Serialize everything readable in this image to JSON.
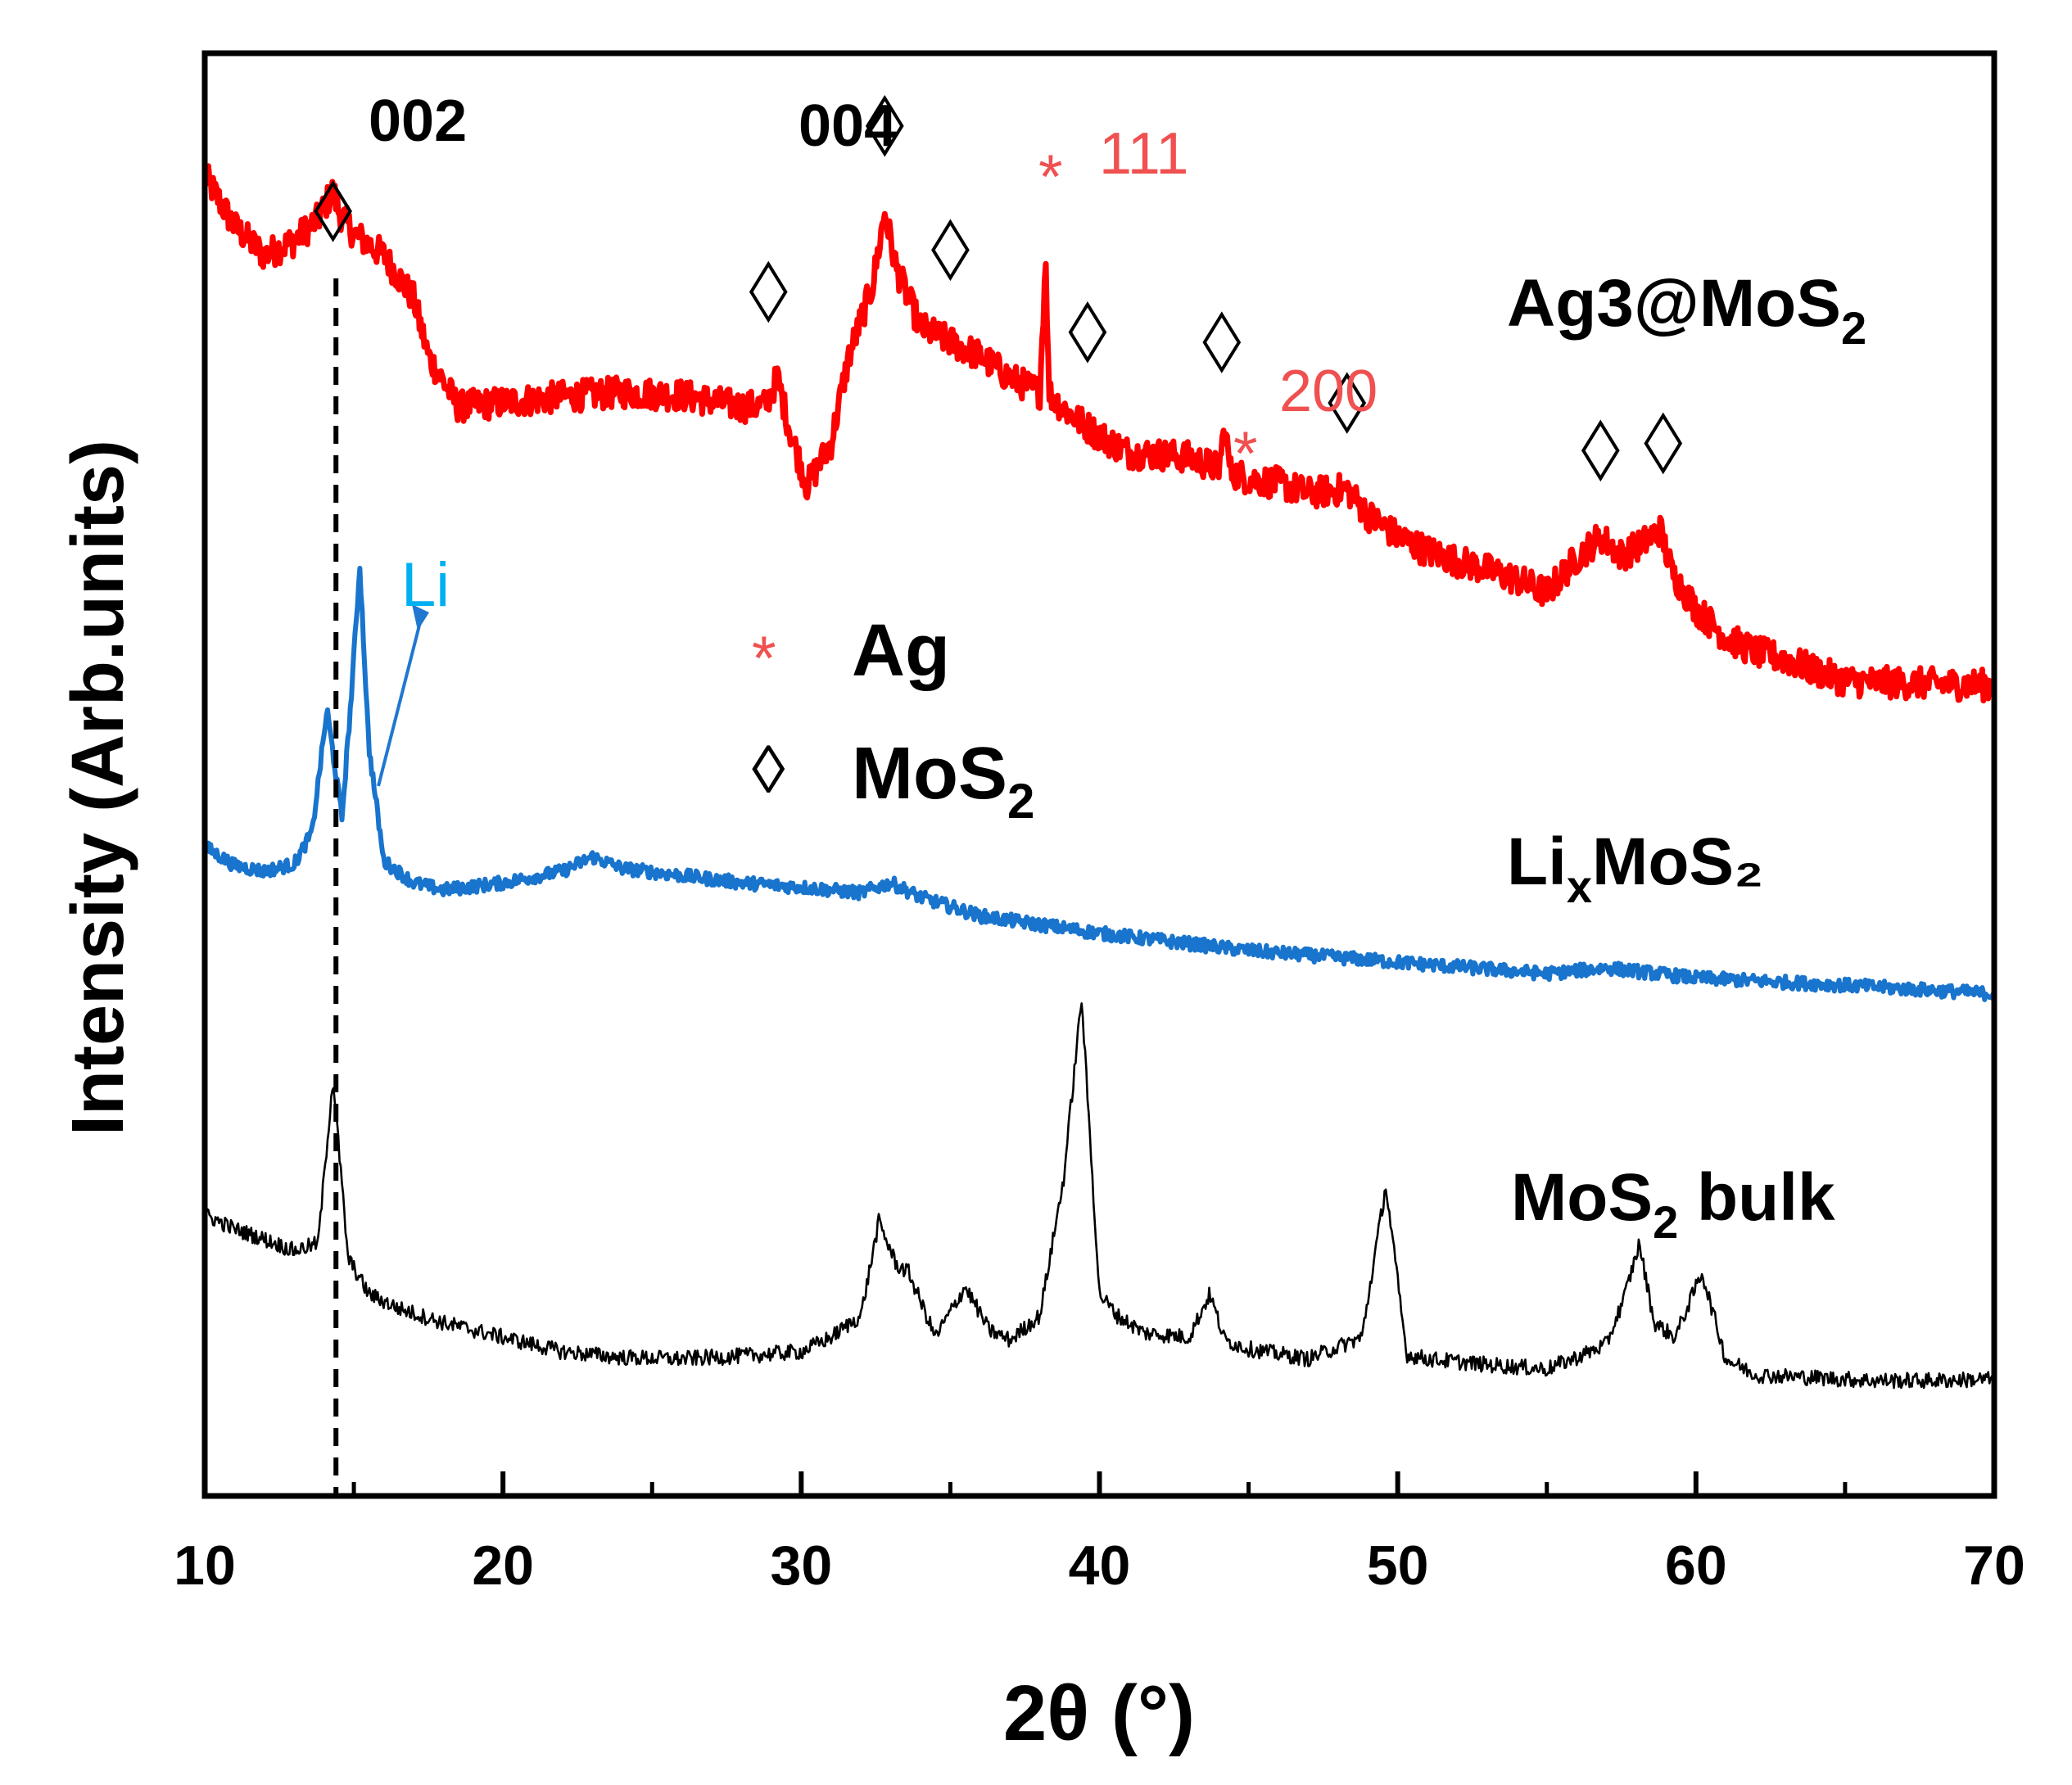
{
  "chart_data": {
    "type": "line",
    "xlabel": "2θ (°)",
    "ylabel": "Intensity (Arb.units)",
    "xlim": [
      10,
      70
    ],
    "ylim": [
      0,
      100
    ],
    "x_ticks": [
      "10",
      "20",
      "30",
      "40",
      "50",
      "60",
      "70"
    ],
    "series": [
      {
        "name": "Ag3@MoS2",
        "label": {
          "text": "Ag3@MoS",
          "sub": "2",
          "tail": ""
        },
        "color": "#ff0000",
        "x": [
          10,
          11,
          12,
          13,
          13.8,
          14.3,
          14.5,
          15,
          16,
          17,
          17.5,
          18.5,
          20,
          22,
          24,
          26,
          28,
          28.8,
          29.2,
          29.6,
          30.2,
          31,
          31.6,
          32.4,
          32.8,
          33.2,
          34,
          35,
          36,
          37,
          38,
          38.2,
          38.3,
          38.5,
          39,
          40,
          41,
          42,
          43,
          44,
          44.2,
          44.4,
          45,
          46,
          47,
          48.3,
          49,
          50,
          51,
          52,
          53,
          54,
          55,
          56,
          56.8,
          57.5,
          58.2,
          58.8,
          59.2,
          60,
          61,
          62,
          63,
          64,
          65,
          66,
          68,
          70
        ],
        "y": [
          91.5,
          88,
          86,
          87,
          88.5,
          90.5,
          89,
          87.5,
          86,
          83,
          79,
          75.5,
          75.8,
          76.2,
          76.5,
          76.3,
          75.5,
          75.6,
          77.5,
          74,
          70,
          73,
          79,
          84,
          89,
          85,
          81,
          80,
          79,
          77.5,
          76.5,
          86,
          76.5,
          76,
          75,
          73.5,
          72.3,
          72.2,
          72,
          71.2,
          74,
          71,
          70.5,
          70.2,
          69.5,
          69.8,
          68,
          66.5,
          65.5,
          64.8,
          64.2,
          63.5,
          62.6,
          65,
          66.5,
          65.2,
          66,
          67,
          64,
          61.5,
          59.5,
          58.5,
          58,
          57.2,
          56.5,
          56.4,
          56.3,
          56.2
        ]
      },
      {
        "name": "LixMoS2",
        "label": {
          "text": "Li",
          "sub": "x",
          "tail": "MoS₂"
        },
        "color": "#1874cd",
        "x": [
          10,
          11,
          12,
          13,
          13.6,
          14.1,
          14.6,
          14.9,
          15.2,
          15.5,
          16,
          17,
          18,
          20,
          22,
          23,
          24,
          26,
          28,
          30,
          32,
          33,
          34,
          36,
          40,
          45,
          50,
          55,
          57,
          60,
          65,
          70
        ],
        "y": [
          45,
          43.7,
          43.3,
          43.8,
          46,
          54.5,
          47,
          55,
          64.5,
          52,
          44,
          42.5,
          42,
          42.5,
          43.3,
          44.3,
          43.5,
          43,
          42.5,
          42.2,
          41.8,
          42.5,
          41.5,
          40.2,
          39,
          37.8,
          37,
          36.2,
          36.6,
          35.9,
          35.4,
          34.8
        ]
      },
      {
        "name": "MoS2 bulk",
        "label": {
          "text": "MoS",
          "sub": "2",
          "tail": " bulk"
        },
        "color": "#000000",
        "x": [
          10,
          11,
          12,
          13,
          13.8,
          14.3,
          14.8,
          15.5,
          16.5,
          18,
          20,
          22,
          24,
          26,
          28,
          30,
          31,
          32,
          32.6,
          33.2,
          33.6,
          34.5,
          35.5,
          36.3,
          37,
          38,
          38.8,
          39.4,
          40,
          40.6,
          41.5,
          43,
          43.7,
          44.2,
          45,
          47,
          48.8,
          49.6,
          50.3,
          51,
          53,
          55,
          56,
          57,
          57.6,
          58.1,
          58.6,
          59.3,
          60.2,
          61,
          62,
          64,
          66,
          68,
          70
        ],
        "y": [
          19.5,
          18.5,
          17.8,
          17,
          17.5,
          29,
          16.5,
          14,
          13,
          12,
          11,
          10,
          9.6,
          9.5,
          9.7,
          10,
          11,
          12.5,
          19,
          16,
          15.5,
          11,
          14.5,
          11.5,
          10.8,
          12.5,
          22,
          34.5,
          14,
          12.5,
          11.3,
          11,
          14,
          10.8,
          10.2,
          9.5,
          11,
          21.5,
          9.8,
          9.5,
          9.1,
          8.8,
          9.6,
          10.5,
          13.8,
          17.5,
          12,
          11,
          15.5,
          9.5,
          8.4,
          8.2,
          8,
          8,
          8.1
        ]
      }
    ],
    "annotations": {
      "miller_002": "002",
      "miller_004": "004",
      "ag_111": {
        "symbol": "*",
        "text": "111",
        "color": "#f05050"
      },
      "ag_200": {
        "symbol": "*",
        "text": "200",
        "color": "#f05050"
      },
      "li_label": {
        "text": "Li",
        "color": "#00b0f0"
      },
      "mos2_markers_x": [
        14.3,
        28.9,
        32.8,
        35,
        39.6,
        44.1,
        48.3,
        56.8,
        58.9
      ],
      "reference_line_x": 14.4
    },
    "legend": [
      {
        "symbol": "*",
        "text": "Ag",
        "sub": "",
        "color": "#f05050"
      },
      {
        "symbol": "◊",
        "text": "MoS",
        "sub": "2",
        "color": "#000000"
      }
    ]
  }
}
